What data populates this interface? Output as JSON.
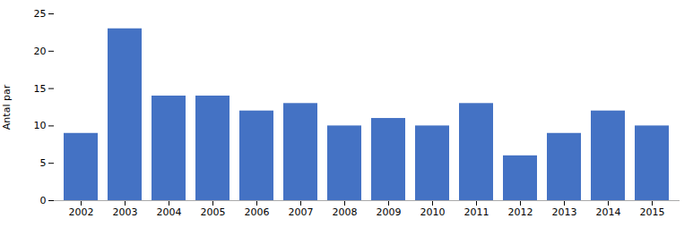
{
  "chart_data": {
    "type": "bar",
    "categories": [
      "2002",
      "2003",
      "2004",
      "2005",
      "2006",
      "2007",
      "2008",
      "2009",
      "2010",
      "2011",
      "2012",
      "2013",
      "2014",
      "2015"
    ],
    "values": [
      9,
      23,
      14,
      14,
      12,
      13,
      10,
      11,
      10,
      13,
      6,
      9,
      12,
      10
    ],
    "color": "#4472C4",
    "ylabel": "Antal par",
    "ylim": [
      0,
      25
    ],
    "yticks": [
      0,
      5,
      10,
      15,
      20,
      25
    ],
    "grid": false
  }
}
